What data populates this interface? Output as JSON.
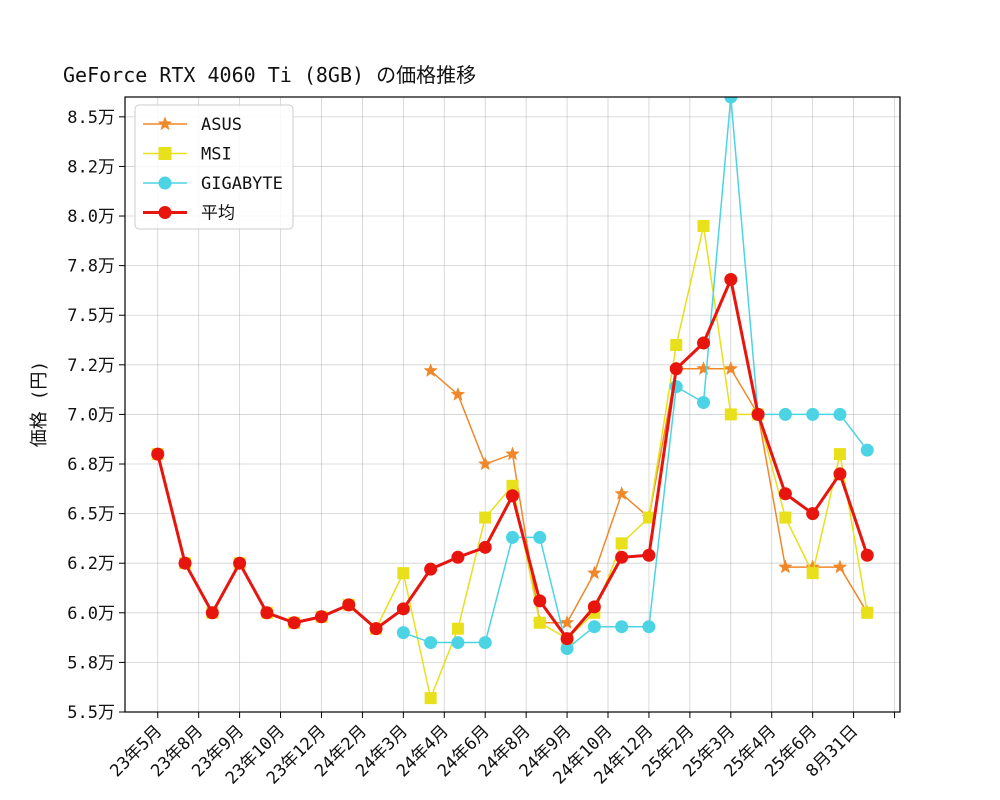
{
  "chart_data": {
    "type": "line",
    "title": "GeForce RTX 4060 Ti (8GB) の価格推移",
    "ylabel": "価格 (円)",
    "xlabel": "",
    "ylim": [
      55000,
      86000
    ],
    "yticks": [
      55000,
      57500,
      60000,
      62500,
      65000,
      67500,
      70000,
      72500,
      75000,
      77500,
      80000,
      82500,
      85000
    ],
    "ytick_labels": [
      "5.5万",
      "5.8万",
      "6.0万",
      "6.2万",
      "6.5万",
      "6.8万",
      "7.0万",
      "7.2万",
      "7.5万",
      "7.8万",
      "8.0万",
      "8.2万",
      "8.5万"
    ],
    "x_tick_labels": [
      "23年5月",
      "23年8月",
      "23年9月",
      "23年10月",
      "23年12月",
      "24年2月",
      "24年3月",
      "24年4月",
      "24年6月",
      "24年8月",
      "24年9月",
      "24年10月",
      "24年12月",
      "25年2月",
      "25年3月",
      "25年4月",
      "25年6月",
      "8月31日"
    ],
    "x_tick_positions": [
      0,
      1.5,
      3,
      4.5,
      6,
      7.5,
      9,
      10.5,
      12,
      13.5,
      15,
      16.5,
      18,
      19.5,
      21,
      22.5,
      24,
      25.5
    ],
    "xlim": [
      -1.2,
      27.2
    ],
    "grid": true,
    "legend_position": "top-left",
    "series": [
      {
        "name": "ASUS",
        "color": "#f0882a",
        "marker": "star",
        "line_width": 1.5,
        "x": [
          10,
          11,
          12,
          13,
          14,
          15,
          16,
          17,
          18,
          19,
          20,
          21,
          22,
          23,
          24,
          25,
          26
        ],
        "values": [
          72200,
          71000,
          67500,
          68000,
          59500,
          59500,
          62000,
          66000,
          64800,
          72300,
          72300,
          72300,
          70000,
          62300,
          62300,
          62300,
          60000
        ]
      },
      {
        "name": "MSI",
        "color": "#e8e01a",
        "marker": "square",
        "line_width": 1.5,
        "x": [
          0,
          1,
          2,
          3,
          4,
          5,
          6,
          7,
          8,
          9,
          10,
          11,
          12,
          13,
          14,
          15,
          16,
          17,
          18,
          19,
          20,
          21,
          22,
          23,
          24,
          25,
          26
        ],
        "values": [
          68000,
          62500,
          60000,
          62500,
          60000,
          59500,
          59800,
          60400,
          59200,
          62000,
          55700,
          59200,
          64800,
          66400,
          59500,
          58700,
          60000,
          63500,
          64800,
          73500,
          79500,
          70000,
          70000,
          64800,
          62000,
          68000,
          60000
        ]
      },
      {
        "name": "GIGABYTE",
        "color": "#4dd4e4",
        "marker": "circle",
        "line_width": 1.5,
        "x": [
          9,
          10,
          11,
          12,
          13,
          14,
          15,
          16,
          17,
          18,
          19,
          20,
          21,
          22,
          23,
          24,
          25,
          26
        ],
        "values": [
          59000,
          58500,
          58500,
          58500,
          63800,
          63800,
          58200,
          59300,
          59300,
          59300,
          71400,
          70600,
          86000,
          70000,
          70000,
          70000,
          70000,
          68200
        ]
      },
      {
        "name": "平均",
        "color": "#e8140e",
        "marker": "circle",
        "line_width": 3,
        "x": [
          0,
          1,
          2,
          3,
          4,
          5,
          6,
          7,
          8,
          9,
          10,
          11,
          12,
          13,
          14,
          15,
          16,
          17,
          18,
          19,
          20,
          21,
          22,
          23,
          24,
          25,
          26
        ],
        "values": [
          68000,
          62500,
          60000,
          62500,
          60000,
          59500,
          59800,
          60400,
          59200,
          60200,
          62200,
          62800,
          63300,
          65900,
          60600,
          58700,
          60300,
          62800,
          62900,
          72300,
          73600,
          76800,
          70000,
          66000,
          65000,
          67000,
          62900
        ]
      }
    ]
  }
}
